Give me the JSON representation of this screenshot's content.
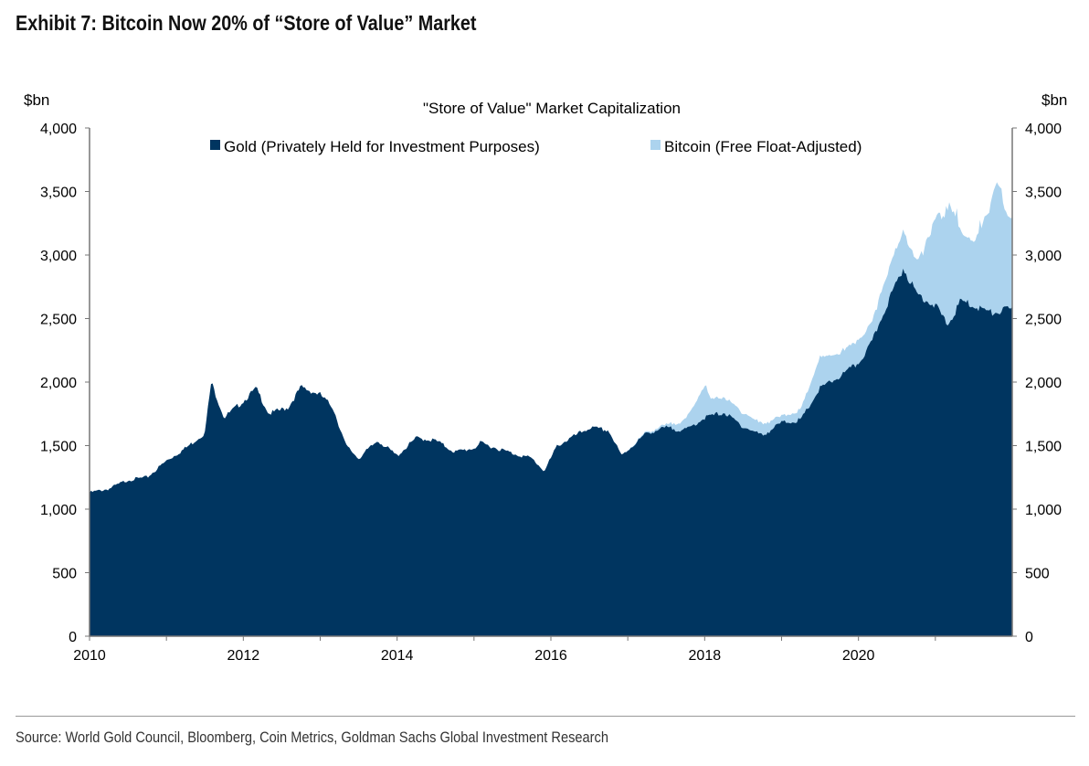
{
  "exhibit_title": "Exhibit 7: Bitcoin Now 20% of “Store of Value” Market",
  "source": "Source: World Gold Council, Bloomberg, Coin Metrics, Goldman Sachs Global Investment Research",
  "colors": {
    "gold": "#003560",
    "bitcoin": "#acd3ee"
  },
  "chart_data": {
    "type": "area",
    "stacked": true,
    "title": "\"Store of Value\" Market Capitalization",
    "ylabel_left": "$bn",
    "ylabel_right": "$bn",
    "ylim": [
      0,
      4000
    ],
    "yticks": [
      "0",
      "500",
      "1,000",
      "1,500",
      "2,000",
      "2,500",
      "3,000",
      "3,500",
      "4,000"
    ],
    "xlim": [
      "2010-01",
      "2021-12"
    ],
    "xticks": [
      "2010",
      "2012",
      "2014",
      "2016",
      "2018",
      "2020"
    ],
    "grid": false,
    "legend_position": "top",
    "series": [
      {
        "name": "Gold (Privately Held for Investment Purposes)",
        "color": "#003560",
        "points": [
          [
            "2010-01",
            1130
          ],
          [
            "2010-04",
            1160
          ],
          [
            "2010-07",
            1230
          ],
          [
            "2010-10",
            1250
          ],
          [
            "2011-01",
            1380
          ],
          [
            "2011-04",
            1480
          ],
          [
            "2011-07",
            1600
          ],
          [
            "2011-08",
            2000
          ],
          [
            "2011-10",
            1720
          ],
          [
            "2012-01",
            1850
          ],
          [
            "2012-03",
            1950
          ],
          [
            "2012-05",
            1750
          ],
          [
            "2012-08",
            1800
          ],
          [
            "2012-10",
            1960
          ],
          [
            "2013-01",
            1900
          ],
          [
            "2013-03",
            1800
          ],
          [
            "2013-05",
            1500
          ],
          [
            "2013-07",
            1400
          ],
          [
            "2013-10",
            1540
          ],
          [
            "2014-01",
            1420
          ],
          [
            "2014-04",
            1560
          ],
          [
            "2014-07",
            1540
          ],
          [
            "2014-10",
            1450
          ],
          [
            "2015-01",
            1480
          ],
          [
            "2015-02",
            1520
          ],
          [
            "2015-07",
            1440
          ],
          [
            "2015-10",
            1400
          ],
          [
            "2015-12",
            1300
          ],
          [
            "2016-02",
            1500
          ],
          [
            "2016-07",
            1640
          ],
          [
            "2016-10",
            1620
          ],
          [
            "2016-12",
            1420
          ],
          [
            "2017-04",
            1600
          ],
          [
            "2017-07",
            1640
          ],
          [
            "2017-10",
            1620
          ],
          [
            "2018-01",
            1720
          ],
          [
            "2018-04",
            1760
          ],
          [
            "2018-07",
            1650
          ],
          [
            "2018-10",
            1580
          ],
          [
            "2019-01",
            1680
          ],
          [
            "2019-04",
            1700
          ],
          [
            "2019-07",
            1950
          ],
          [
            "2019-10",
            2040
          ],
          [
            "2020-01",
            2150
          ],
          [
            "2020-03",
            2300
          ],
          [
            "2020-05",
            2560
          ],
          [
            "2020-08",
            2900
          ],
          [
            "2020-10",
            2700
          ],
          [
            "2021-01",
            2600
          ],
          [
            "2021-03",
            2450
          ],
          [
            "2021-05",
            2640
          ],
          [
            "2021-07",
            2600
          ],
          [
            "2021-10",
            2540
          ],
          [
            "2021-12",
            2570
          ]
        ]
      },
      {
        "name": "Bitcoin (Free Float-Adjusted)",
        "color": "#acd3ee",
        "points": [
          [
            "2010-01",
            0
          ],
          [
            "2016-12",
            0
          ],
          [
            "2017-04",
            10
          ],
          [
            "2017-07",
            20
          ],
          [
            "2017-10",
            80
          ],
          [
            "2018-01",
            250
          ],
          [
            "2018-02",
            130
          ],
          [
            "2018-07",
            110
          ],
          [
            "2018-10",
            90
          ],
          [
            "2019-01",
            50
          ],
          [
            "2019-04",
            80
          ],
          [
            "2019-07",
            240
          ],
          [
            "2019-10",
            180
          ],
          [
            "2020-01",
            180
          ],
          [
            "2020-03",
            150
          ],
          [
            "2020-05",
            230
          ],
          [
            "2020-08",
            300
          ],
          [
            "2020-10",
            250
          ],
          [
            "2020-12",
            500
          ],
          [
            "2021-01",
            700
          ],
          [
            "2021-03",
            900
          ],
          [
            "2021-04",
            800
          ],
          [
            "2021-05",
            550
          ],
          [
            "2021-07",
            500
          ],
          [
            "2021-10",
            900
          ],
          [
            "2021-11",
            1000
          ],
          [
            "2021-12",
            750
          ]
        ]
      }
    ]
  }
}
